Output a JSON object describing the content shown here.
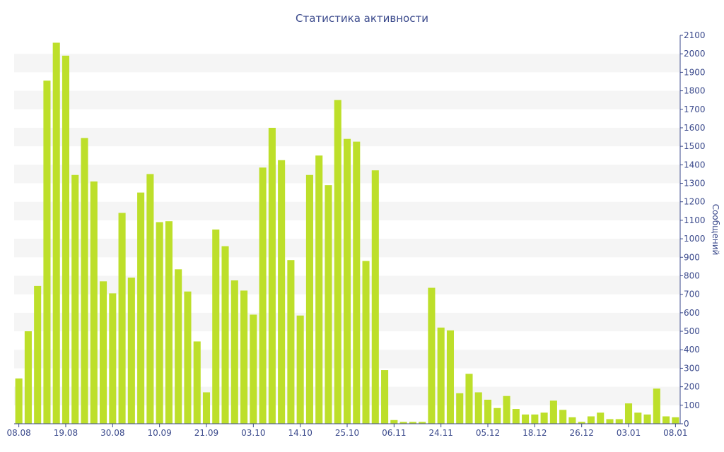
{
  "chart_data": {
    "type": "bar",
    "title": "Статистика активности",
    "xlabel": "",
    "ylabel": "Сообщений",
    "ylim": [
      0,
      2100
    ],
    "y_ticks": [
      0,
      100,
      200,
      300,
      400,
      500,
      600,
      700,
      800,
      900,
      1000,
      1100,
      1200,
      1300,
      1400,
      1500,
      1600,
      1700,
      1800,
      1900,
      2000,
      2100
    ],
    "y_axis_side": "right",
    "x_tick_labels": [
      "08.08",
      "19.08",
      "30.08",
      "10.09",
      "21.09",
      "03.10",
      "14.10",
      "25.10",
      "06.11",
      "24.11",
      "05.12",
      "18.12",
      "26.12",
      "03.01",
      "08.01"
    ],
    "x_tick_bar_index": [
      0,
      5,
      10,
      15,
      20,
      25,
      30,
      35,
      40,
      45,
      50,
      55,
      60,
      65,
      70
    ],
    "grid": "alternating horizontal bands",
    "colors": {
      "bar": "#bddf2a",
      "band": "#f5f5f5",
      "axis": "#3b4a8c",
      "text": "#3b4a8c"
    },
    "series": [
      {
        "values": [
          245,
          500,
          745,
          1855,
          2060,
          1990,
          1345,
          1545,
          1310,
          770,
          705,
          1140,
          790,
          1250,
          1350,
          1090,
          1095,
          835,
          715,
          445,
          170,
          1050,
          960,
          775,
          720,
          590,
          1385,
          1600,
          1425,
          885,
          585,
          1345,
          1450,
          1290,
          1750,
          1540,
          1525,
          880,
          1370,
          290,
          20,
          10,
          10,
          10,
          735,
          520,
          505,
          165,
          270,
          170,
          130,
          85,
          150,
          80,
          50,
          50,
          60,
          125,
          75,
          35,
          10,
          40,
          60,
          25,
          25,
          110,
          60,
          50,
          190,
          40,
          35
        ]
      }
    ]
  }
}
